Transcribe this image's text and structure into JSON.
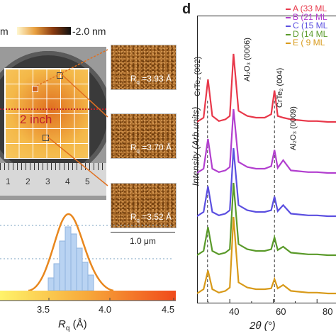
{
  "colorbar": {
    "left_label": "m",
    "right_label": "-2.0 nm"
  },
  "wafer": {
    "size_label": "2 inch",
    "ruler_numbers": [
      "1",
      "2",
      "3",
      "4",
      "5"
    ]
  },
  "afm_panels": [
    {
      "rq_label": "R",
      "rq_sub": "q",
      "rq_value": " =3.93 Å"
    },
    {
      "rq_label": "R",
      "rq_sub": "q",
      "rq_value": " =3.70 Å"
    },
    {
      "rq_label": "R",
      "rq_sub": "q",
      "rq_value": " =3.52 Å"
    }
  ],
  "scale_bar_label": "1.0 μm",
  "histogram": {
    "xlabel_main": "R",
    "xlabel_sub": "q",
    "xlabel_unit": " (Å)",
    "ticks": [
      "3.5",
      "4.0",
      "4.5"
    ],
    "bar_color": "#b9d3f2",
    "fit_color": "#e8871e"
  },
  "panel_d": {
    "label": "d",
    "ylabel": "Intensity (Arb.units)",
    "xlabel": "2θ (°)",
    "xticks": [
      "40",
      "60",
      "80"
    ],
    "peak_labels": [
      "CrTe₂ (002)",
      "Al₂O₃ (0006)",
      "CrTe₂ (004)",
      "Al₂O₃ (0009)"
    ],
    "legend": [
      {
        "name": "A (33 ML",
        "color": "#e8384a"
      },
      {
        "name": "B (21 ML",
        "color": "#b23fcf"
      },
      {
        "name": "C (15 ML",
        "color": "#5b4fe0"
      },
      {
        "name": "D (14 ML",
        "color": "#5a9a2a"
      },
      {
        "name": "E (  9 ML",
        "color": "#d89a1a"
      }
    ]
  },
  "chart_data": {
    "type": "line",
    "xlabel": "2θ (°)",
    "ylabel": "Intensity (Arb.units)",
    "xlim": [
      25,
      90
    ],
    "x": [
      25,
      28,
      30,
      32,
      35,
      38,
      40,
      41.7,
      44,
      48,
      52,
      56,
      59,
      60.5,
      62,
      64.5,
      68,
      72,
      76,
      80,
      85,
      90
    ],
    "series": [
      {
        "name": "A (33 ML",
        "values": [
          0.45,
          0.5,
          0.95,
          0.52,
          0.46,
          0.48,
          0.52,
          1.25,
          0.58,
          0.52,
          0.5,
          0.5,
          0.54,
          0.82,
          0.52,
          0.5,
          0.48,
          0.47,
          0.46,
          0.46,
          0.45,
          0.45
        ]
      },
      {
        "name": "B (21 ML",
        "values": [
          0.45,
          0.5,
          0.85,
          0.5,
          0.46,
          0.48,
          0.52,
          1.2,
          0.58,
          0.52,
          0.5,
          0.5,
          0.53,
          0.72,
          0.51,
          0.6,
          0.48,
          0.47,
          0.46,
          0.46,
          0.45,
          0.45
        ]
      },
      {
        "name": "C (15 ML",
        "values": [
          0.45,
          0.5,
          0.8,
          0.5,
          0.46,
          0.48,
          0.52,
          1.25,
          0.58,
          0.52,
          0.5,
          0.5,
          0.52,
          0.68,
          0.51,
          0.58,
          0.48,
          0.47,
          0.46,
          0.46,
          0.45,
          0.45
        ]
      },
      {
        "name": "D (14 ML",
        "values": [
          0.45,
          0.5,
          0.78,
          0.5,
          0.46,
          0.48,
          0.52,
          1.3,
          0.58,
          0.52,
          0.5,
          0.5,
          0.52,
          0.66,
          0.51,
          0.55,
          0.48,
          0.47,
          0.46,
          0.46,
          0.45,
          0.45
        ]
      },
      {
        "name": "E (  9 ML",
        "values": [
          0.45,
          0.5,
          0.72,
          0.5,
          0.46,
          0.48,
          0.52,
          1.35,
          0.58,
          0.52,
          0.5,
          0.5,
          0.51,
          0.62,
          0.51,
          0.55,
          0.48,
          0.47,
          0.46,
          0.46,
          0.45,
          0.45
        ]
      }
    ]
  }
}
